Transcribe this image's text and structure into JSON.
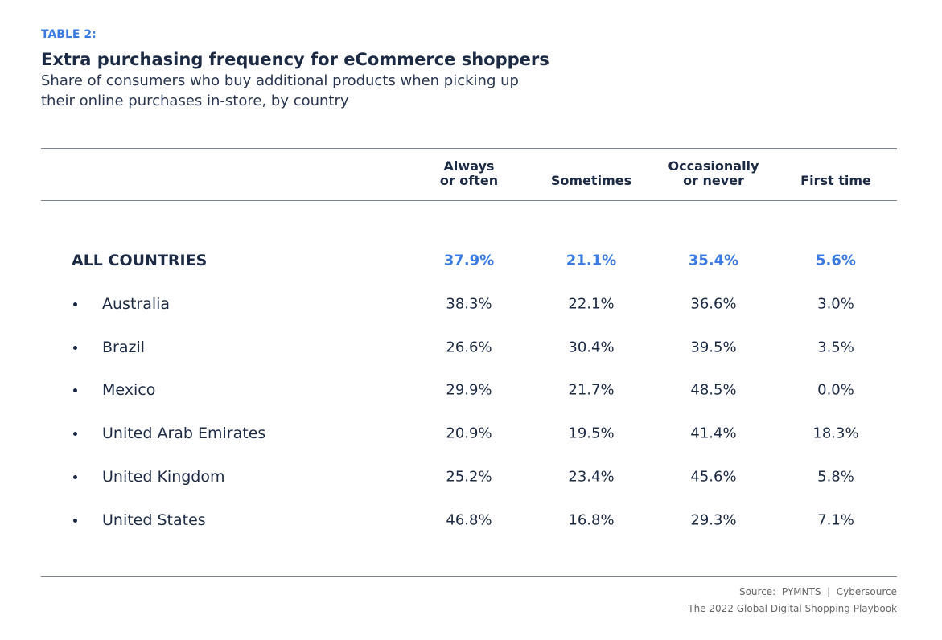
{
  "header": {
    "label": "TABLE 2:",
    "title": "Extra purchasing frequency for eCommerce shoppers",
    "subtitle": [
      "Share of consumers who buy additional products when picking up",
      "their online purchases in-store, by country"
    ]
  },
  "table": {
    "columns": [
      [
        "Always",
        "or often"
      ],
      [
        "Sometimes"
      ],
      [
        "Occasionally",
        "or never"
      ],
      [
        "First time"
      ]
    ],
    "total": {
      "label": "ALL COUNTRIES",
      "cells": [
        "37.9%",
        "21.1%",
        "35.4%",
        "5.6%"
      ]
    },
    "rows": [
      {
        "label": "Australia",
        "cells": [
          "38.3%",
          "22.1%",
          "36.6%",
          "3.0%"
        ]
      },
      {
        "label": "Brazil",
        "cells": [
          "26.6%",
          "30.4%",
          "39.5%",
          "3.5%"
        ]
      },
      {
        "label": "Mexico",
        "cells": [
          "29.9%",
          "21.7%",
          "48.5%",
          "0.0%"
        ]
      },
      {
        "label": "United Arab Emirates",
        "cells": [
          "20.9%",
          "19.5%",
          "41.4%",
          "18.3%"
        ]
      },
      {
        "label": "United Kingdom",
        "cells": [
          "25.2%",
          "23.4%",
          "45.6%",
          "5.8%"
        ]
      },
      {
        "label": "United States",
        "cells": [
          "46.8%",
          "16.8%",
          "29.3%",
          "7.1%"
        ]
      }
    ]
  },
  "footer": {
    "source": "Source:  PYMNTS  |  Cybersource",
    "publication": "The 2022 Global Digital Shopping Playbook"
  }
}
